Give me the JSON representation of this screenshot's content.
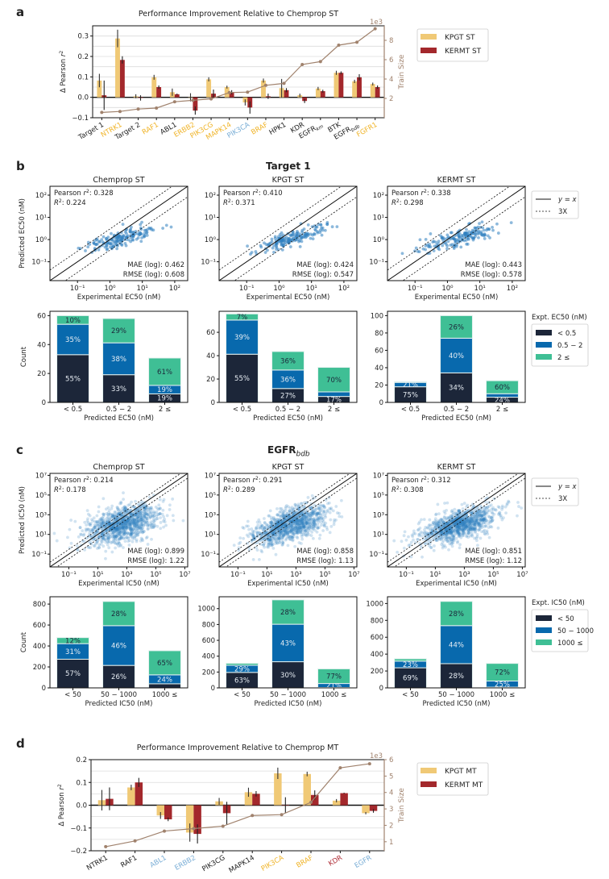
{
  "colors": {
    "kpgt": "#f0c976",
    "kermt": "#a3282c",
    "train_line": "#a0826d",
    "scatter": "#2f7fbf",
    "bin_low": "#1c2639",
    "bin_mid": "#0869ad",
    "bin_high": "#3fbf95",
    "label_orange": "#f0b429",
    "label_blue": "#7aaed6",
    "label_red": "#b0303a",
    "label_black": "#222222"
  },
  "panels": {
    "a": {
      "letter": "a"
    },
    "b": {
      "letter": "b",
      "title": "Target 1"
    },
    "c": {
      "letter": "c",
      "title": "EGFR",
      "title_sub": "bdb"
    },
    "d": {
      "letter": "d"
    }
  },
  "chart_data": [
    {
      "id": "a",
      "type": "bar",
      "title": "Performance Improvement Relative to Chemprop ST",
      "ylabel": "Δ Pearson r²",
      "y2label": "Train Size",
      "y2_multiplier": "1e3",
      "ylim": [
        -0.1,
        0.35
      ],
      "yticks": [
        -0.1,
        0.0,
        0.1,
        0.2,
        0.3
      ],
      "y2lim": [
        0.0,
        9.5
      ],
      "y2ticks": [
        2,
        4,
        6,
        8
      ],
      "grid": true,
      "legend": {
        "position": "right",
        "entries": [
          "KPGT ST",
          "KERMT ST"
        ]
      },
      "categories": [
        {
          "label": "Target 1",
          "color": "label_black"
        },
        {
          "label": "NTRK1",
          "color": "label_orange"
        },
        {
          "label": "Target 2",
          "color": "label_black"
        },
        {
          "label": "RAF1",
          "color": "label_orange"
        },
        {
          "label": "ABL1",
          "color": "label_black"
        },
        {
          "label": "ERBB2",
          "color": "label_orange"
        },
        {
          "label": "PIK3CG",
          "color": "label_orange"
        },
        {
          "label": "MAPK14",
          "color": "label_orange"
        },
        {
          "label": "PIK3CA",
          "color": "label_blue"
        },
        {
          "label": "BRAF",
          "color": "label_orange"
        },
        {
          "label": "HPK1",
          "color": "label_black"
        },
        {
          "label": "KDR",
          "color": "label_black"
        },
        {
          "label": "EGFR",
          "sub": "km",
          "color": "label_black"
        },
        {
          "label": "BTK",
          "color": "label_black"
        },
        {
          "label": "EGFR",
          "sub": "bdb",
          "color": "label_black"
        },
        {
          "label": "FGFR1",
          "color": "label_orange"
        }
      ],
      "series": [
        {
          "name": "KPGT ST",
          "values": [
            0.082,
            0.288,
            0.005,
            0.098,
            0.025,
            0.0,
            0.088,
            0.05,
            -0.025,
            0.082,
            0.045,
            0.01,
            0.043,
            0.12,
            0.078,
            0.065
          ],
          "errors": [
            0.033,
            0.043,
            0.01,
            0.012,
            0.018,
            0.02,
            0.01,
            0.007,
            0.015,
            0.01,
            0.045,
            0.008,
            0.008,
            0.01,
            0.008,
            0.007
          ]
        },
        {
          "name": "KERMT ST",
          "values": [
            0.01,
            0.183,
            -0.003,
            0.05,
            0.015,
            -0.065,
            0.018,
            0.025,
            -0.05,
            0.005,
            0.035,
            -0.018,
            0.03,
            0.12,
            0.098,
            0.05
          ],
          "errors": [
            0.072,
            0.018,
            0.013,
            0.008,
            0.003,
            0.02,
            0.02,
            0.01,
            0.03,
            0.013,
            0.01,
            0.01,
            0.007,
            0.007,
            0.015,
            0.008
          ]
        }
      ],
      "train_size": [
        0.55,
        0.65,
        0.9,
        1.0,
        1.65,
        1.8,
        1.95,
        2.6,
        2.65,
        3.35,
        3.55,
        5.5,
        5.8,
        7.5,
        7.8,
        9.2
      ]
    },
    {
      "id": "d",
      "type": "bar",
      "title": "Performance Improvement Relative to Chemprop MT",
      "ylabel": "Δ Pearson r²",
      "y2label": "Train Size",
      "y2_multiplier": "1e3",
      "ylim": [
        -0.2,
        0.2
      ],
      "yticks": [
        -0.2,
        -0.1,
        0.0,
        0.1,
        0.2
      ],
      "y2lim": [
        0.45,
        6.0
      ],
      "y2ticks": [
        1,
        2,
        3,
        4,
        5,
        6
      ],
      "grid": true,
      "legend": {
        "position": "right",
        "entries": [
          "KPGT MT",
          "KERMT MT"
        ]
      },
      "categories": [
        {
          "label": "NTRK1",
          "color": "label_black"
        },
        {
          "label": "RAF1",
          "color": "label_black"
        },
        {
          "label": "ABL1",
          "color": "label_blue"
        },
        {
          "label": "ERBB2",
          "color": "label_blue"
        },
        {
          "label": "PIK3CG",
          "color": "label_black"
        },
        {
          "label": "MAPK14",
          "color": "label_black"
        },
        {
          "label": "PIK3CA",
          "color": "label_orange"
        },
        {
          "label": "BRAF",
          "color": "label_orange"
        },
        {
          "label": "KDR",
          "color": "label_red"
        },
        {
          "label": "EGFR",
          "color": "label_blue"
        }
      ],
      "series": [
        {
          "name": "KPGT MT",
          "values": [
            0.022,
            0.078,
            -0.045,
            -0.12,
            0.017,
            0.057,
            0.14,
            0.137,
            0.02,
            -0.035
          ],
          "errors": [
            0.045,
            0.012,
            0.015,
            0.04,
            0.015,
            0.02,
            0.025,
            0.01,
            0.007,
            0.005
          ]
        },
        {
          "name": "KERMT MT",
          "values": [
            0.028,
            0.1,
            -0.062,
            -0.126,
            -0.035,
            0.05,
            0.0,
            0.045,
            0.053,
            -0.025
          ],
          "errors": [
            0.05,
            0.02,
            0.008,
            0.042,
            0.05,
            0.012,
            0.035,
            0.02,
            0.002,
            0.008
          ]
        }
      ],
      "train_size": [
        0.7,
        1.05,
        1.65,
        1.8,
        1.95,
        2.6,
        2.65,
        3.4,
        5.5,
        5.75
      ]
    },
    {
      "id": "b-scatter",
      "type": "scatter",
      "xlabel": "Experimental EC50 (nM)",
      "ylabel": "Predicted EC50 (nM)",
      "log_range": [
        -1.85,
        2.4
      ],
      "ticks": [
        "10⁻¹",
        "10⁰",
        "10¹",
        "10²"
      ],
      "tick_exponents": [
        -1,
        0,
        1,
        2
      ],
      "legend": {
        "position": "right",
        "entries": [
          "y = x",
          "3X"
        ]
      },
      "panels": [
        {
          "title": "Chemprop ST",
          "pearson": "0.328",
          "r2": "0.224",
          "mae": "0.462",
          "rmse": "0.608",
          "n": 170,
          "seed": 11,
          "slope": 0.35,
          "spread": 0.35
        },
        {
          "title": "KPGT ST",
          "pearson": "0.410",
          "r2": "0.371",
          "mae": "0.424",
          "rmse": "0.547",
          "n": 170,
          "seed": 23,
          "slope": 0.45,
          "spread": 0.32
        },
        {
          "title": "KERMT ST",
          "pearson": "0.338",
          "r2": "0.298",
          "mae": "0.443",
          "rmse": "0.578",
          "n": 170,
          "seed": 37,
          "slope": 0.4,
          "spread": 0.35
        }
      ]
    },
    {
      "id": "b-stacked",
      "type": "bar",
      "xlabel": "Predicted EC50 (nM)",
      "ylabel": "Count",
      "categories": [
        "< 0.5",
        "0.5 − 2",
        "2 ≤"
      ],
      "legend": {
        "title": "Expt. EC50 (nM)",
        "position": "right",
        "entries": [
          "< 0.5",
          "0.5 − 2",
          "2 ≤"
        ]
      },
      "panels": [
        {
          "ylim": [
            0,
            63
          ],
          "yticks": [
            0,
            20,
            40,
            60
          ],
          "totals": [
            60,
            58,
            31
          ],
          "pct": [
            [
              55,
              35,
              10
            ],
            [
              33,
              38,
              29
            ],
            [
              19,
              19,
              61
            ]
          ],
          "labels": [
            [
              "55%",
              "35%",
              "10%"
            ],
            [
              "33%",
              "38%",
              "29%"
            ],
            [
              "19%",
              "19%",
              "61%"
            ]
          ]
        },
        {
          "ylim": [
            0,
            78
          ],
          "yticks": [
            0,
            20,
            40,
            60
          ],
          "totals": [
            75,
            44,
            30
          ],
          "pct": [
            [
              55,
              39,
              7
            ],
            [
              27,
              36,
              36
            ],
            [
              17,
              13,
              70
            ]
          ],
          "labels": [
            [
              "55%",
              "39%",
              "7%"
            ],
            [
              "27%",
              "36%",
              "36%"
            ],
            [
              "17%",
              "",
              "70%"
            ]
          ]
        },
        {
          "ylim": [
            0,
            105
          ],
          "yticks": [
            0,
            20,
            40,
            60,
            80,
            100
          ],
          "totals": [
            24,
            100,
            25
          ],
          "pct": [
            [
              75,
              21,
              4
            ],
            [
              34,
              40,
              26
            ],
            [
              24,
              16,
              60
            ]
          ],
          "labels": [
            [
              "75%",
              "21%",
              ""
            ],
            [
              "34%",
              "40%",
              "26%"
            ],
            [
              "24%",
              "",
              "60%"
            ]
          ]
        }
      ]
    },
    {
      "id": "c-scatter",
      "type": "scatter",
      "xlabel": "Experimental IC50 (nM)",
      "ylabel": "Predicted IC50 (nM)",
      "log_range": [
        -2.3,
        7.2
      ],
      "ticks": [
        "10⁻¹",
        "10¹",
        "10³",
        "10⁵",
        "10⁷"
      ],
      "tick_exponents": [
        -1,
        1,
        3,
        5,
        7
      ],
      "legend": {
        "position": "right",
        "entries": [
          "y = x",
          "3X"
        ]
      },
      "panels": [
        {
          "title": "Chemprop ST",
          "pearson": "0.214",
          "r2": "0.178",
          "mae": "0.899",
          "rmse": "1.22",
          "n": 1100,
          "seed": 51,
          "slope": 0.38,
          "spread": 0.75
        },
        {
          "title": "KPGT ST",
          "pearson": "0.291",
          "r2": "0.289",
          "mae": "0.858",
          "rmse": "1.13",
          "n": 1100,
          "seed": 67,
          "slope": 0.42,
          "spread": 0.65
        },
        {
          "title": "KERMT ST",
          "pearson": "0.312",
          "r2": "0.308",
          "mae": "0.851",
          "rmse": "1.12",
          "n": 1100,
          "seed": 79,
          "slope": 0.44,
          "spread": 0.62
        }
      ]
    },
    {
      "id": "c-stacked",
      "type": "bar",
      "xlabel": "Predicted IC50 (nM)",
      "ylabel": "Count",
      "categories": [
        "< 50",
        "50 − 1000",
        "1000 ≤"
      ],
      "legend": {
        "title": "Expt. IC50 (nM)",
        "position": "right",
        "entries": [
          "< 50",
          "50 − 1000",
          "1000 ≤"
        ]
      },
      "panels": [
        {
          "ylim": [
            0,
            870
          ],
          "yticks": [
            0,
            200,
            400,
            600,
            800
          ],
          "totals": [
            480,
            825,
            355
          ],
          "pct": [
            [
              57,
              31,
              12
            ],
            [
              26,
              46,
              28
            ],
            [
              11,
              24,
              65
            ]
          ],
          "labels": [
            [
              "57%",
              "31%",
              "12%"
            ],
            [
              "26%",
              "46%",
              "28%"
            ],
            [
              "",
              "24%",
              "65%"
            ]
          ]
        },
        {
          "ylim": [
            0,
            1150
          ],
          "yticks": [
            0,
            200,
            400,
            600,
            800,
            1000
          ],
          "totals": [
            310,
            1100,
            240
          ],
          "pct": [
            [
              63,
              29,
              8
            ],
            [
              30,
              43,
              28
            ],
            [
              2,
              21,
              77
            ]
          ],
          "labels": [
            [
              "63%",
              "29%",
              ""
            ],
            [
              "30%",
              "43%",
              "28%"
            ],
            [
              "",
              "21%",
              "77%"
            ]
          ]
        },
        {
          "ylim": [
            0,
            1080
          ],
          "yticks": [
            0,
            200,
            400,
            600,
            800,
            1000
          ],
          "totals": [
            345,
            1025,
            290
          ],
          "pct": [
            [
              69,
              23,
              8
            ],
            [
              28,
              44,
              28
            ],
            [
              3,
              25,
              72
            ]
          ],
          "labels": [
            [
              "69%",
              "23%",
              ""
            ],
            [
              "28%",
              "44%",
              "28%"
            ],
            [
              "",
              "25%",
              "72%"
            ]
          ]
        }
      ]
    }
  ]
}
